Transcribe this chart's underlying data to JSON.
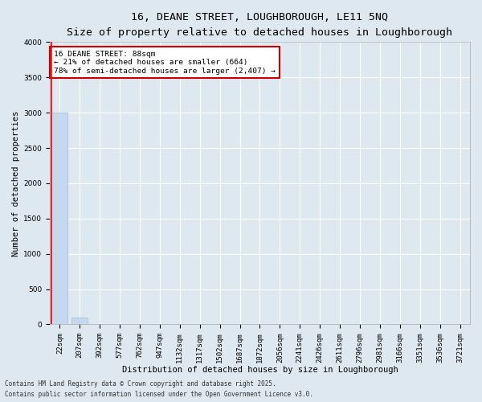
{
  "title_line1": "16, DEANE STREET, LOUGHBOROUGH, LE11 5NQ",
  "title_line2": "Size of property relative to detached houses in Loughborough",
  "xlabel": "Distribution of detached houses by size in Loughborough",
  "ylabel": "Number of detached properties",
  "categories": [
    "22sqm",
    "207sqm",
    "392sqm",
    "577sqm",
    "762sqm",
    "947sqm",
    "1132sqm",
    "1317sqm",
    "1502sqm",
    "1687sqm",
    "1872sqm",
    "2056sqm",
    "2241sqm",
    "2426sqm",
    "2611sqm",
    "2796sqm",
    "2981sqm",
    "3166sqm",
    "3351sqm",
    "3536sqm",
    "3721sqm"
  ],
  "values": [
    3000,
    100,
    0,
    0,
    0,
    0,
    0,
    0,
    0,
    0,
    0,
    0,
    0,
    0,
    0,
    0,
    0,
    0,
    0,
    0,
    0
  ],
  "bar_color": "#c5d8ed",
  "bar_edge_color": "#a0bcd8",
  "ylim": [
    0,
    4000
  ],
  "yticks": [
    0,
    500,
    1000,
    1500,
    2000,
    2500,
    3000,
    3500,
    4000
  ],
  "red_line_x": -0.4,
  "annotation_text": "16 DEANE STREET: 88sqm\n← 21% of detached houses are smaller (664)\n78% of semi-detached houses are larger (2,407) →",
  "annotation_box_color": "#ffffff",
  "annotation_box_edge_color": "#cc0000",
  "background_color": "#dde8f0",
  "plot_bg_color": "#dde8f0",
  "footer_line1": "Contains HM Land Registry data © Crown copyright and database right 2025.",
  "footer_line2": "Contains public sector information licensed under the Open Government Licence v3.0.",
  "title_fontsize": 9.5,
  "subtitle_fontsize": 8.5,
  "tick_fontsize": 6.5,
  "xlabel_fontsize": 7.5,
  "ylabel_fontsize": 7.5,
  "annotation_fontsize": 6.8,
  "footer_fontsize": 5.5
}
